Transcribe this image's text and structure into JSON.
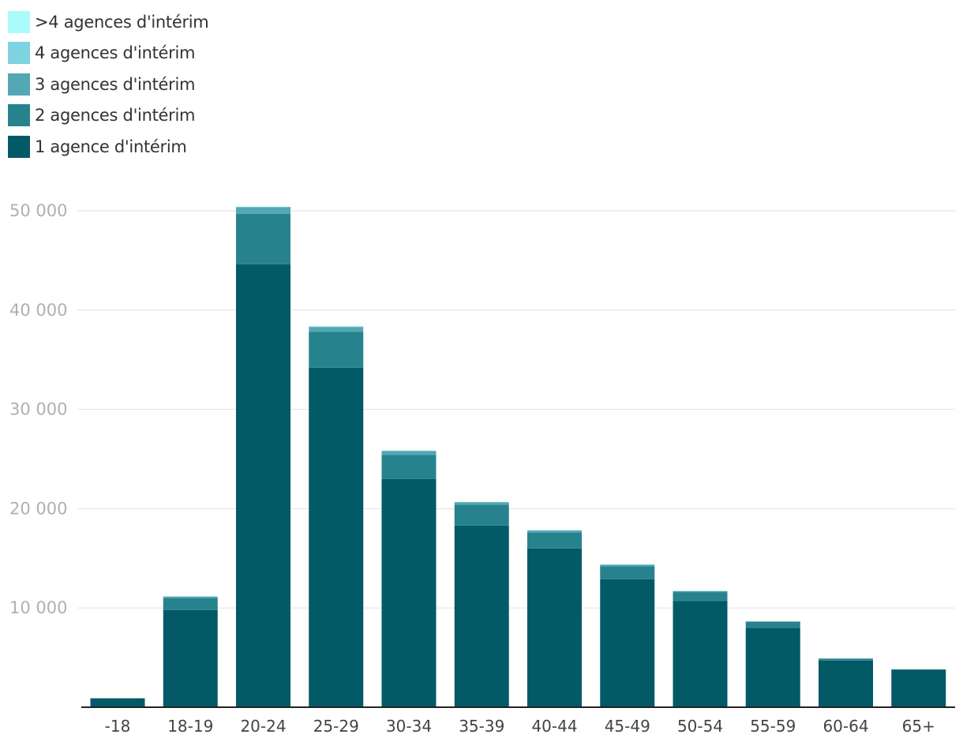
{
  "chart_data": {
    "type": "bar",
    "stacked": true,
    "title": "",
    "xlabel": "",
    "ylabel": "",
    "ylim": [
      0,
      50000
    ],
    "yticks": [
      10000,
      20000,
      30000,
      40000,
      50000
    ],
    "ytick_labels": [
      "10 000",
      "20 000",
      "30 000",
      "40 000",
      "50 000"
    ],
    "grid": true,
    "legend_position": "top-left",
    "categories": [
      "-18",
      "18-19",
      "20-24",
      "25-29",
      "30-34",
      "35-39",
      "40-44",
      "45-49",
      "50-54",
      "55-59",
      "60-64",
      "65+"
    ],
    "series": [
      {
        "name": "1 agence d'intérim",
        "color": "#025a67",
        "values": [
          900,
          9800,
          44600,
          34200,
          23000,
          18300,
          16000,
          12900,
          10700,
          8000,
          4700,
          3800
        ]
      },
      {
        "name": "2 agences d'intérim",
        "color": "#26838e",
        "values": [
          0,
          1200,
          5100,
          3600,
          2400,
          2100,
          1600,
          1300,
          900,
          600,
          200,
          0
        ]
      },
      {
        "name": "3 agences d'intérim",
        "color": "#52a8b3",
        "values": [
          0,
          150,
          650,
          500,
          400,
          250,
          200,
          150,
          100,
          50,
          0,
          0
        ]
      },
      {
        "name": "4 agences d'intérim",
        "color": "#7fd2e0",
        "values": [
          0,
          0,
          50,
          50,
          30,
          20,
          20,
          20,
          20,
          0,
          0,
          0
        ]
      },
      {
        "name": ">4 agences d'intérim",
        "color": "#aafbfb",
        "values": [
          0,
          0,
          20,
          20,
          20,
          10,
          10,
          10,
          0,
          0,
          0,
          0
        ]
      }
    ]
  }
}
